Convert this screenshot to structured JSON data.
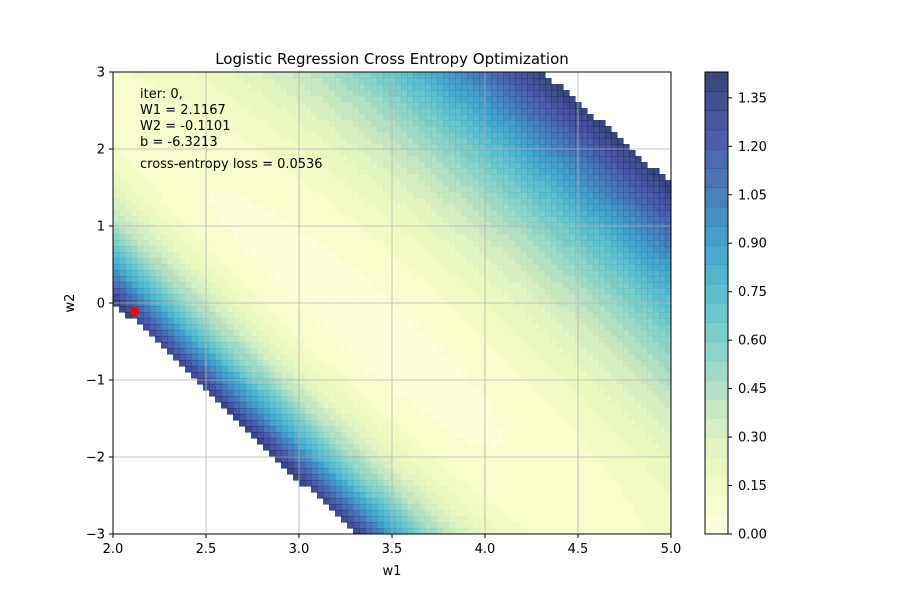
{
  "chart_data": {
    "type": "contour",
    "title": "Logistic Regression Cross Entropy Optimization",
    "xlabel": "w1",
    "ylabel": "w2",
    "xlim": [
      2.0,
      5.0
    ],
    "ylim": [
      -3,
      3
    ],
    "x_ticks": [
      2.0,
      2.5,
      3.0,
      3.5,
      4.0,
      4.5,
      5.0
    ],
    "x_tick_labels": [
      "2.0",
      "2.5",
      "3.0",
      "3.5",
      "4.0",
      "4.5",
      "5.0"
    ],
    "y_ticks": [
      3,
      2,
      1,
      0,
      -1,
      -2,
      -3
    ],
    "y_tick_labels": [
      "3",
      "2",
      "1",
      "0",
      "−1",
      "−2",
      "−3"
    ],
    "grid": true,
    "colormap": "YlGnBu",
    "colorbar": {
      "min": 0.0,
      "max": 1.43,
      "ticks": [
        0.0,
        0.15,
        0.3,
        0.45,
        0.6,
        0.75,
        0.9,
        1.05,
        1.2,
        1.35
      ],
      "tick_labels": [
        "0.00",
        "0.15",
        "0.30",
        "0.45",
        "0.60",
        "0.75",
        "0.90",
        "1.05",
        "1.20",
        "1.35"
      ]
    },
    "current_point": {
      "w1": 2.1167,
      "w2": -0.1101,
      "color": "#ff0000"
    },
    "annotation": {
      "lines": [
        "iter: 0,",
        "W1 = 2.1167",
        "W2 = -0.1101",
        "b = -6.3213"
      ],
      "loss_text": "cross-entropy loss = 0.0536"
    }
  }
}
